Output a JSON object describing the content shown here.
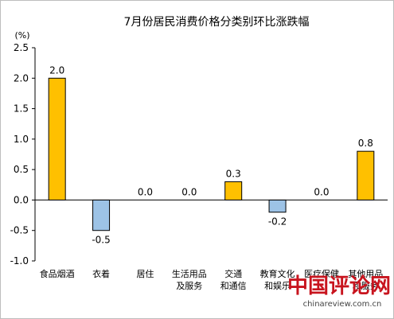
{
  "chart_data": {
    "type": "bar",
    "title": "7月份居民消费价格分类别环比涨跌幅",
    "unit_label": "(%)",
    "ylim": [
      -1.0,
      2.5
    ],
    "yticks": [
      "2.5",
      "2.0",
      "1.5",
      "1.0",
      "0.5",
      "0.0",
      "-0.5",
      "-1.0"
    ],
    "ytick_values": [
      2.5,
      2.0,
      1.5,
      1.0,
      0.5,
      0.0,
      -0.5,
      -1.0
    ],
    "categories": [
      [
        "食品烟酒"
      ],
      [
        "衣着"
      ],
      [
        "居住"
      ],
      [
        "生活用品",
        "及服务"
      ],
      [
        "交通",
        "和通信"
      ],
      [
        "教育文化",
        "和娱乐"
      ],
      [
        "医疗保健"
      ],
      [
        "其他用品",
        "和服务"
      ]
    ],
    "values": [
      2.0,
      -0.5,
      0.0,
      0.0,
      0.3,
      -0.2,
      0.0,
      0.8
    ],
    "value_labels": [
      "2.0",
      "-0.5",
      "0.0",
      "0.0",
      "0.3",
      "-0.2",
      "0.0",
      "0.8"
    ],
    "colors": {
      "positive": "#FFC000",
      "negative": "#9DC3E6",
      "axis": "#000000"
    },
    "grid": false
  },
  "watermark": {
    "text": "中国评论网",
    "url": "chinareview.com.cn"
  }
}
